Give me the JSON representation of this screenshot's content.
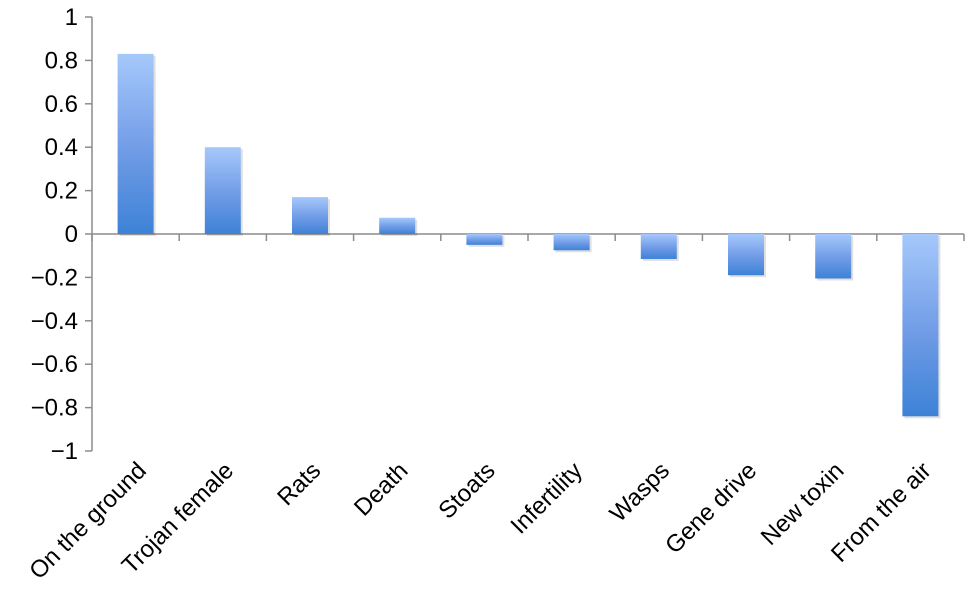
{
  "chart_data": {
    "type": "bar",
    "categories": [
      "On the ground",
      "Trojan female",
      "Rats",
      "Death",
      "Stoats",
      "Infertility",
      "Wasps",
      "Gene drive",
      "New toxin",
      "From the air"
    ],
    "values": [
      0.83,
      0.4,
      0.17,
      0.075,
      -0.05,
      -0.075,
      -0.115,
      -0.19,
      -0.205,
      -0.84
    ],
    "y_ticks": [
      "1",
      "0.8",
      "0.6",
      "0.4",
      "0.2",
      "0",
      "−0.2",
      "−0.4",
      "−0.6",
      "−0.8",
      "−1"
    ],
    "ylim": [
      -1,
      1
    ],
    "grid": false,
    "legend": "none",
    "bar_color_light": "#a6c8fb",
    "bar_color_dark": "#3d82d6"
  }
}
